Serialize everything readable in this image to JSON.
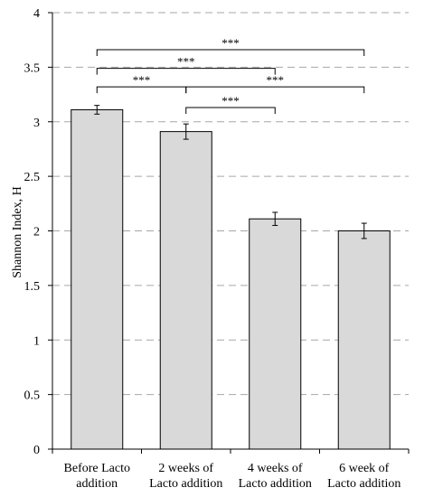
{
  "chart_data": {
    "type": "bar",
    "categories": [
      [
        "Before Lacto",
        "addition"
      ],
      [
        "2 weeks of",
        "Lacto addition"
      ],
      [
        "4 weeks of",
        "Lacto addition"
      ],
      [
        "6 week of",
        "Lacto addition"
      ]
    ],
    "values": [
      3.11,
      2.91,
      2.11,
      2.0
    ],
    "errors": [
      0.04,
      0.07,
      0.06,
      0.07
    ],
    "ylabel": "Shannon Index, H",
    "ylim": [
      0,
      4
    ],
    "yticks": [
      0,
      0.5,
      1,
      1.5,
      2,
      2.5,
      3,
      3.5,
      4
    ],
    "ytick_labels": [
      "0",
      "0.5",
      "1",
      "1.5",
      "2",
      "2.5",
      "3",
      "3.5",
      "4"
    ],
    "grid": "horizontal dashed",
    "colors": {
      "bar_fill": "#d9d9d9",
      "bar_stroke": "#000000",
      "grid": "#a6a6a6",
      "axis": "#000000"
    },
    "significance": [
      {
        "from": 0,
        "to": 3,
        "y": 3.66,
        "label": "***"
      },
      {
        "from": 0,
        "to": 2,
        "y": 3.49,
        "label": "***"
      },
      {
        "from": 0,
        "to": 1,
        "y": 3.32,
        "label": "***"
      },
      {
        "from": 1,
        "to": 3,
        "y": 3.32,
        "label": "***"
      },
      {
        "from": 1,
        "to": 2,
        "y": 3.13,
        "label": "***"
      }
    ]
  }
}
